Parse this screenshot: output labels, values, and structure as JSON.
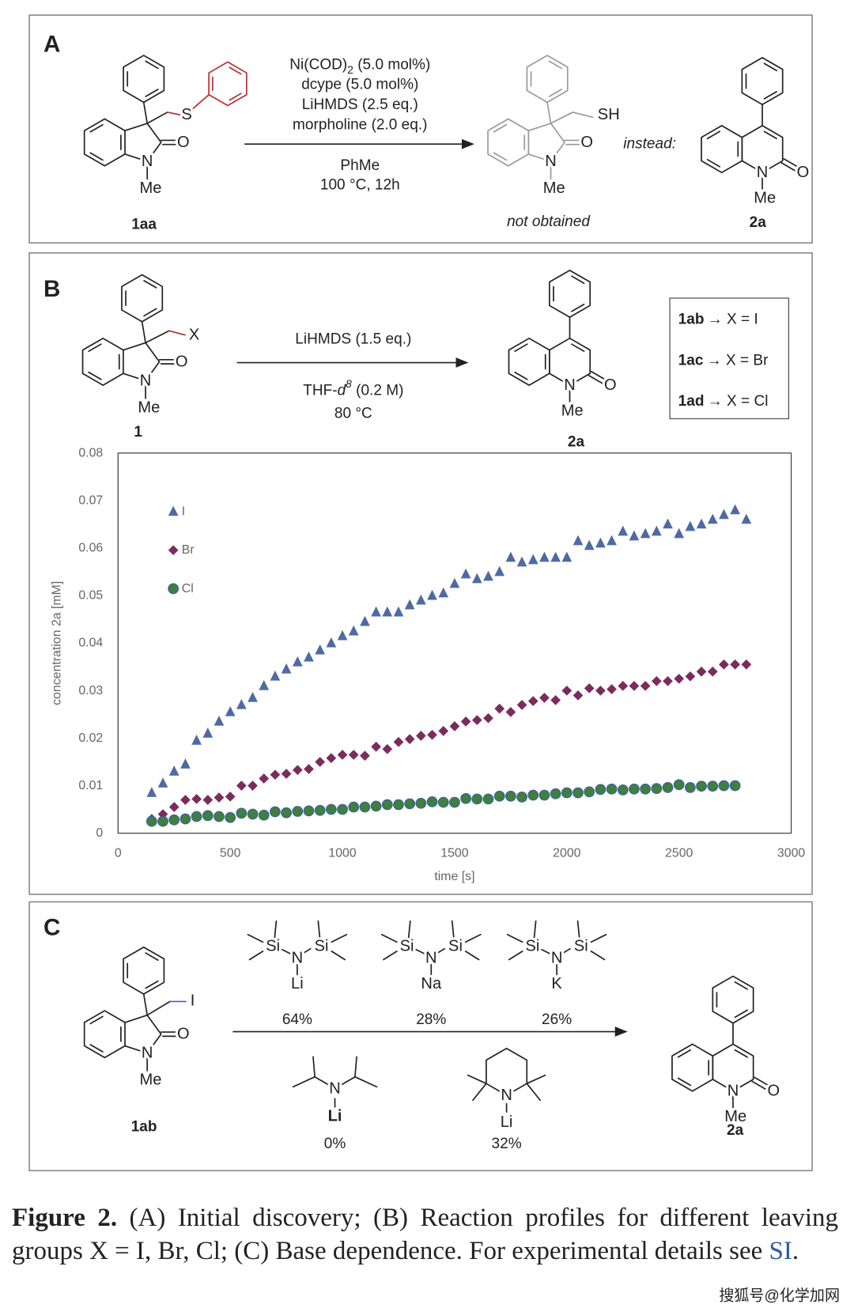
{
  "panel_a": {
    "letter": "A",
    "reactant_atoms": [
      "S",
      "O",
      "N",
      "Me"
    ],
    "reactant_label": "1aa",
    "conditions": {
      "catalyst": "Ni(COD)",
      "catalyst_sub": "2",
      "catalyst_amount": " (5.0 mol%)",
      "lines": [
        "dcype (5.0 mol%)",
        "LiHMDS (2.5 eq.)",
        "morpholine (2.0 eq.)"
      ],
      "solvent": "PhMe",
      "temperature": "100 °C, 12h"
    },
    "expected_atoms": [
      "SH",
      "O",
      "N",
      "Me"
    ],
    "expected_note": "not obtained",
    "instead": "instead:",
    "product_atoms": [
      "N",
      "O",
      "Me"
    ],
    "product_label": "2a"
  },
  "panel_b": {
    "letter": "B",
    "reactant_atoms": [
      "X",
      "O",
      "N",
      "Me"
    ],
    "reactant_label": "1",
    "conditions": {
      "base": "LiHMDS (1.5 eq.)",
      "solvent": "THF-",
      "solvent_italic": "d",
      "solvent_sup": "8",
      "solvent_conc": " (0.2 M)",
      "temperature": "80 °C"
    },
    "product_atoms": [
      "N",
      "O",
      "Me"
    ],
    "product_label": "2a",
    "key": [
      {
        "compound": "1ab",
        "text": "→ X = I"
      },
      {
        "compound": "1ac",
        "text": "→ X = Br"
      },
      {
        "compound": "1ad",
        "text": "→ X = Cl"
      }
    ]
  },
  "chart_data": {
    "type": "scatter",
    "xlabel": "time [s]",
    "ylabel": "concentration 2a [mM]",
    "x": [
      150,
      200,
      250,
      300,
      350,
      400,
      450,
      500,
      550,
      600,
      650,
      700,
      750,
      800,
      850,
      900,
      950,
      1000,
      1050,
      1100,
      1150,
      1200,
      1250,
      1300,
      1350,
      1400,
      1450,
      1500,
      1550,
      1600,
      1650,
      1700,
      1750,
      1800,
      1850,
      1900,
      1950,
      2000,
      2050,
      2100,
      2150,
      2200,
      2250,
      2300,
      2350,
      2400,
      2450,
      2500,
      2550,
      2600,
      2650,
      2700,
      2750,
      2800
    ],
    "series": [
      {
        "name": "I",
        "color": "#4f6aa3",
        "marker": "triangle",
        "values": [
          0.0085,
          0.0105,
          0.013,
          0.0145,
          0.0195,
          0.021,
          0.0235,
          0.0255,
          0.027,
          0.0285,
          0.031,
          0.033,
          0.0345,
          0.036,
          0.037,
          0.0385,
          0.04,
          0.0415,
          0.0425,
          0.0445,
          0.0465,
          0.0465,
          0.0465,
          0.048,
          0.049,
          0.05,
          0.0505,
          0.0525,
          0.0545,
          0.0535,
          0.054,
          0.055,
          0.058,
          0.057,
          0.0575,
          0.058,
          0.058,
          0.058,
          0.0615,
          0.0605,
          0.061,
          0.0615,
          0.0635,
          0.0625,
          0.063,
          0.0635,
          0.065,
          0.063,
          0.0645,
          0.065,
          0.066,
          0.067,
          0.068,
          0.066
        ]
      },
      {
        "name": "Br",
        "color": "#7b2b5e",
        "marker": "diamond",
        "values": [
          0.003,
          0.004,
          0.0055,
          0.007,
          0.0072,
          0.007,
          0.0075,
          0.0077,
          0.01,
          0.01,
          0.0115,
          0.0123,
          0.0125,
          0.0133,
          0.0135,
          0.015,
          0.0158,
          0.0165,
          0.0165,
          0.0163,
          0.0182,
          0.0177,
          0.0192,
          0.0198,
          0.0205,
          0.0207,
          0.0215,
          0.0225,
          0.0235,
          0.0238,
          0.0242,
          0.0262,
          0.0255,
          0.027,
          0.0278,
          0.0285,
          0.028,
          0.03,
          0.029,
          0.0305,
          0.03,
          0.0303,
          0.031,
          0.031,
          0.031,
          0.032,
          0.032,
          0.0325,
          0.033,
          0.034,
          0.034,
          0.0355,
          0.0355,
          0.0355
        ]
      },
      {
        "name": "Cl",
        "color": "#3f7f3f",
        "marker": "circle",
        "values": [
          0.0025,
          0.0025,
          0.0028,
          0.003,
          0.0035,
          0.0037,
          0.0035,
          0.0033,
          0.0042,
          0.004,
          0.0038,
          0.0045,
          0.0043,
          0.0046,
          0.0047,
          0.0048,
          0.005,
          0.005,
          0.0055,
          0.0055,
          0.0057,
          0.006,
          0.006,
          0.0062,
          0.0063,
          0.0066,
          0.0065,
          0.0065,
          0.0073,
          0.0072,
          0.0072,
          0.0078,
          0.0078,
          0.0076,
          0.008,
          0.008,
          0.0083,
          0.0085,
          0.0085,
          0.0087,
          0.0092,
          0.0093,
          0.0091,
          0.0093,
          0.0093,
          0.0094,
          0.0096,
          0.0102,
          0.0096,
          0.0099,
          0.0099,
          0.01,
          0.01,
          null
        ]
      }
    ],
    "xlim": [
      0,
      3000
    ],
    "xticks": [
      0,
      500,
      1000,
      1500,
      2000,
      2500,
      3000
    ],
    "ylim": [
      0,
      0.08
    ],
    "yticks": [
      0,
      0.01,
      0.02,
      0.03,
      0.04,
      0.05,
      0.06,
      0.07,
      0.08
    ],
    "grid": false,
    "legend": "upper left"
  },
  "panel_c": {
    "letter": "C",
    "reactant_atoms": [
      "I",
      "O",
      "N",
      "Me"
    ],
    "reactant_label": "1ab",
    "silyl_bases": [
      {
        "atoms": [
          "Si",
          "N",
          "Si",
          "Li"
        ],
        "yield": "64%"
      },
      {
        "atoms": [
          "Si",
          "N",
          "Si",
          "Na"
        ],
        "yield": "28%"
      },
      {
        "atoms": [
          "Si",
          "N",
          "Si",
          "K"
        ],
        "yield": "26%"
      }
    ],
    "lda": {
      "atoms": [
        "N",
        "Li"
      ],
      "yield": "0%"
    },
    "tmp": {
      "atoms": [
        "N",
        "Li"
      ],
      "yield": "32%"
    },
    "product_atoms": [
      "N",
      "O",
      "Me"
    ],
    "product_label": "2a"
  },
  "caption": {
    "label": "Figure 2.",
    "text": " (A) Initial discovery; (B) Reaction profiles for different leaving groups X = I, Br, Cl; (C) Base dependence. For experimental details see ",
    "link": "SI",
    "end": "."
  },
  "watermark": "搜狐号@化学加网"
}
